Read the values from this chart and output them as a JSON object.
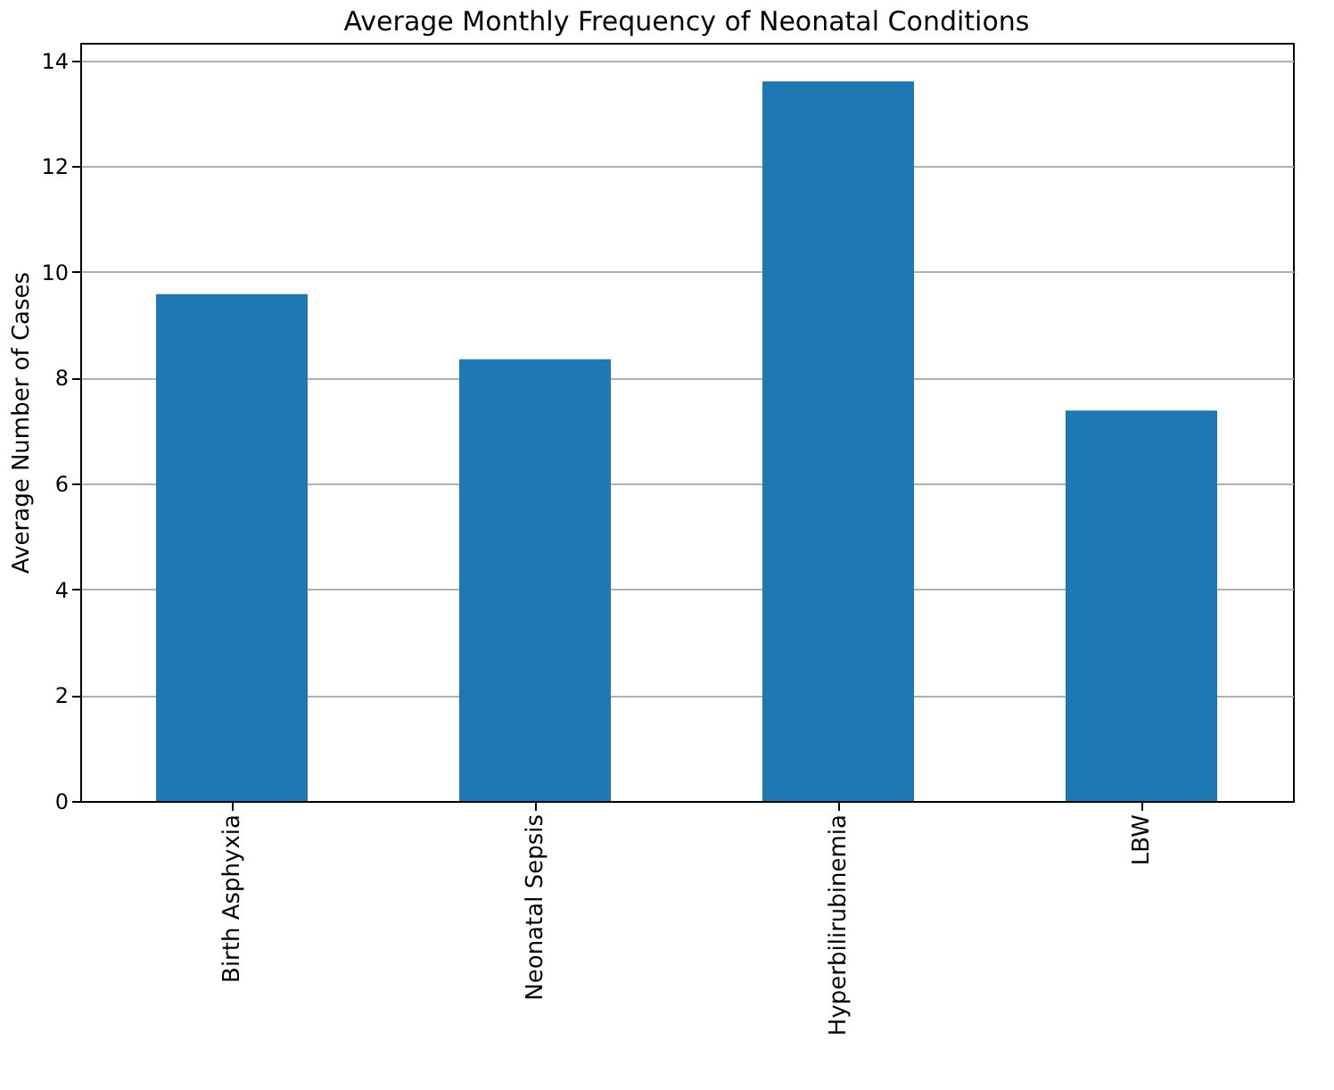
{
  "chart_data": {
    "type": "bar",
    "title": "Average Monthly Frequency of Neonatal Conditions",
    "ylabel": "Average Number of Cases",
    "categories": [
      "Birth Asphyxia",
      "Neonatal Sepsis",
      "Hyperbilirubinemia",
      "LBW"
    ],
    "values": [
      9.58,
      8.35,
      13.6,
      7.38
    ],
    "color": "#1f77b4",
    "ylim": [
      0,
      14.33
    ],
    "yticks": [
      0,
      2,
      4,
      6,
      8,
      10,
      12,
      14
    ],
    "grid": "y"
  }
}
